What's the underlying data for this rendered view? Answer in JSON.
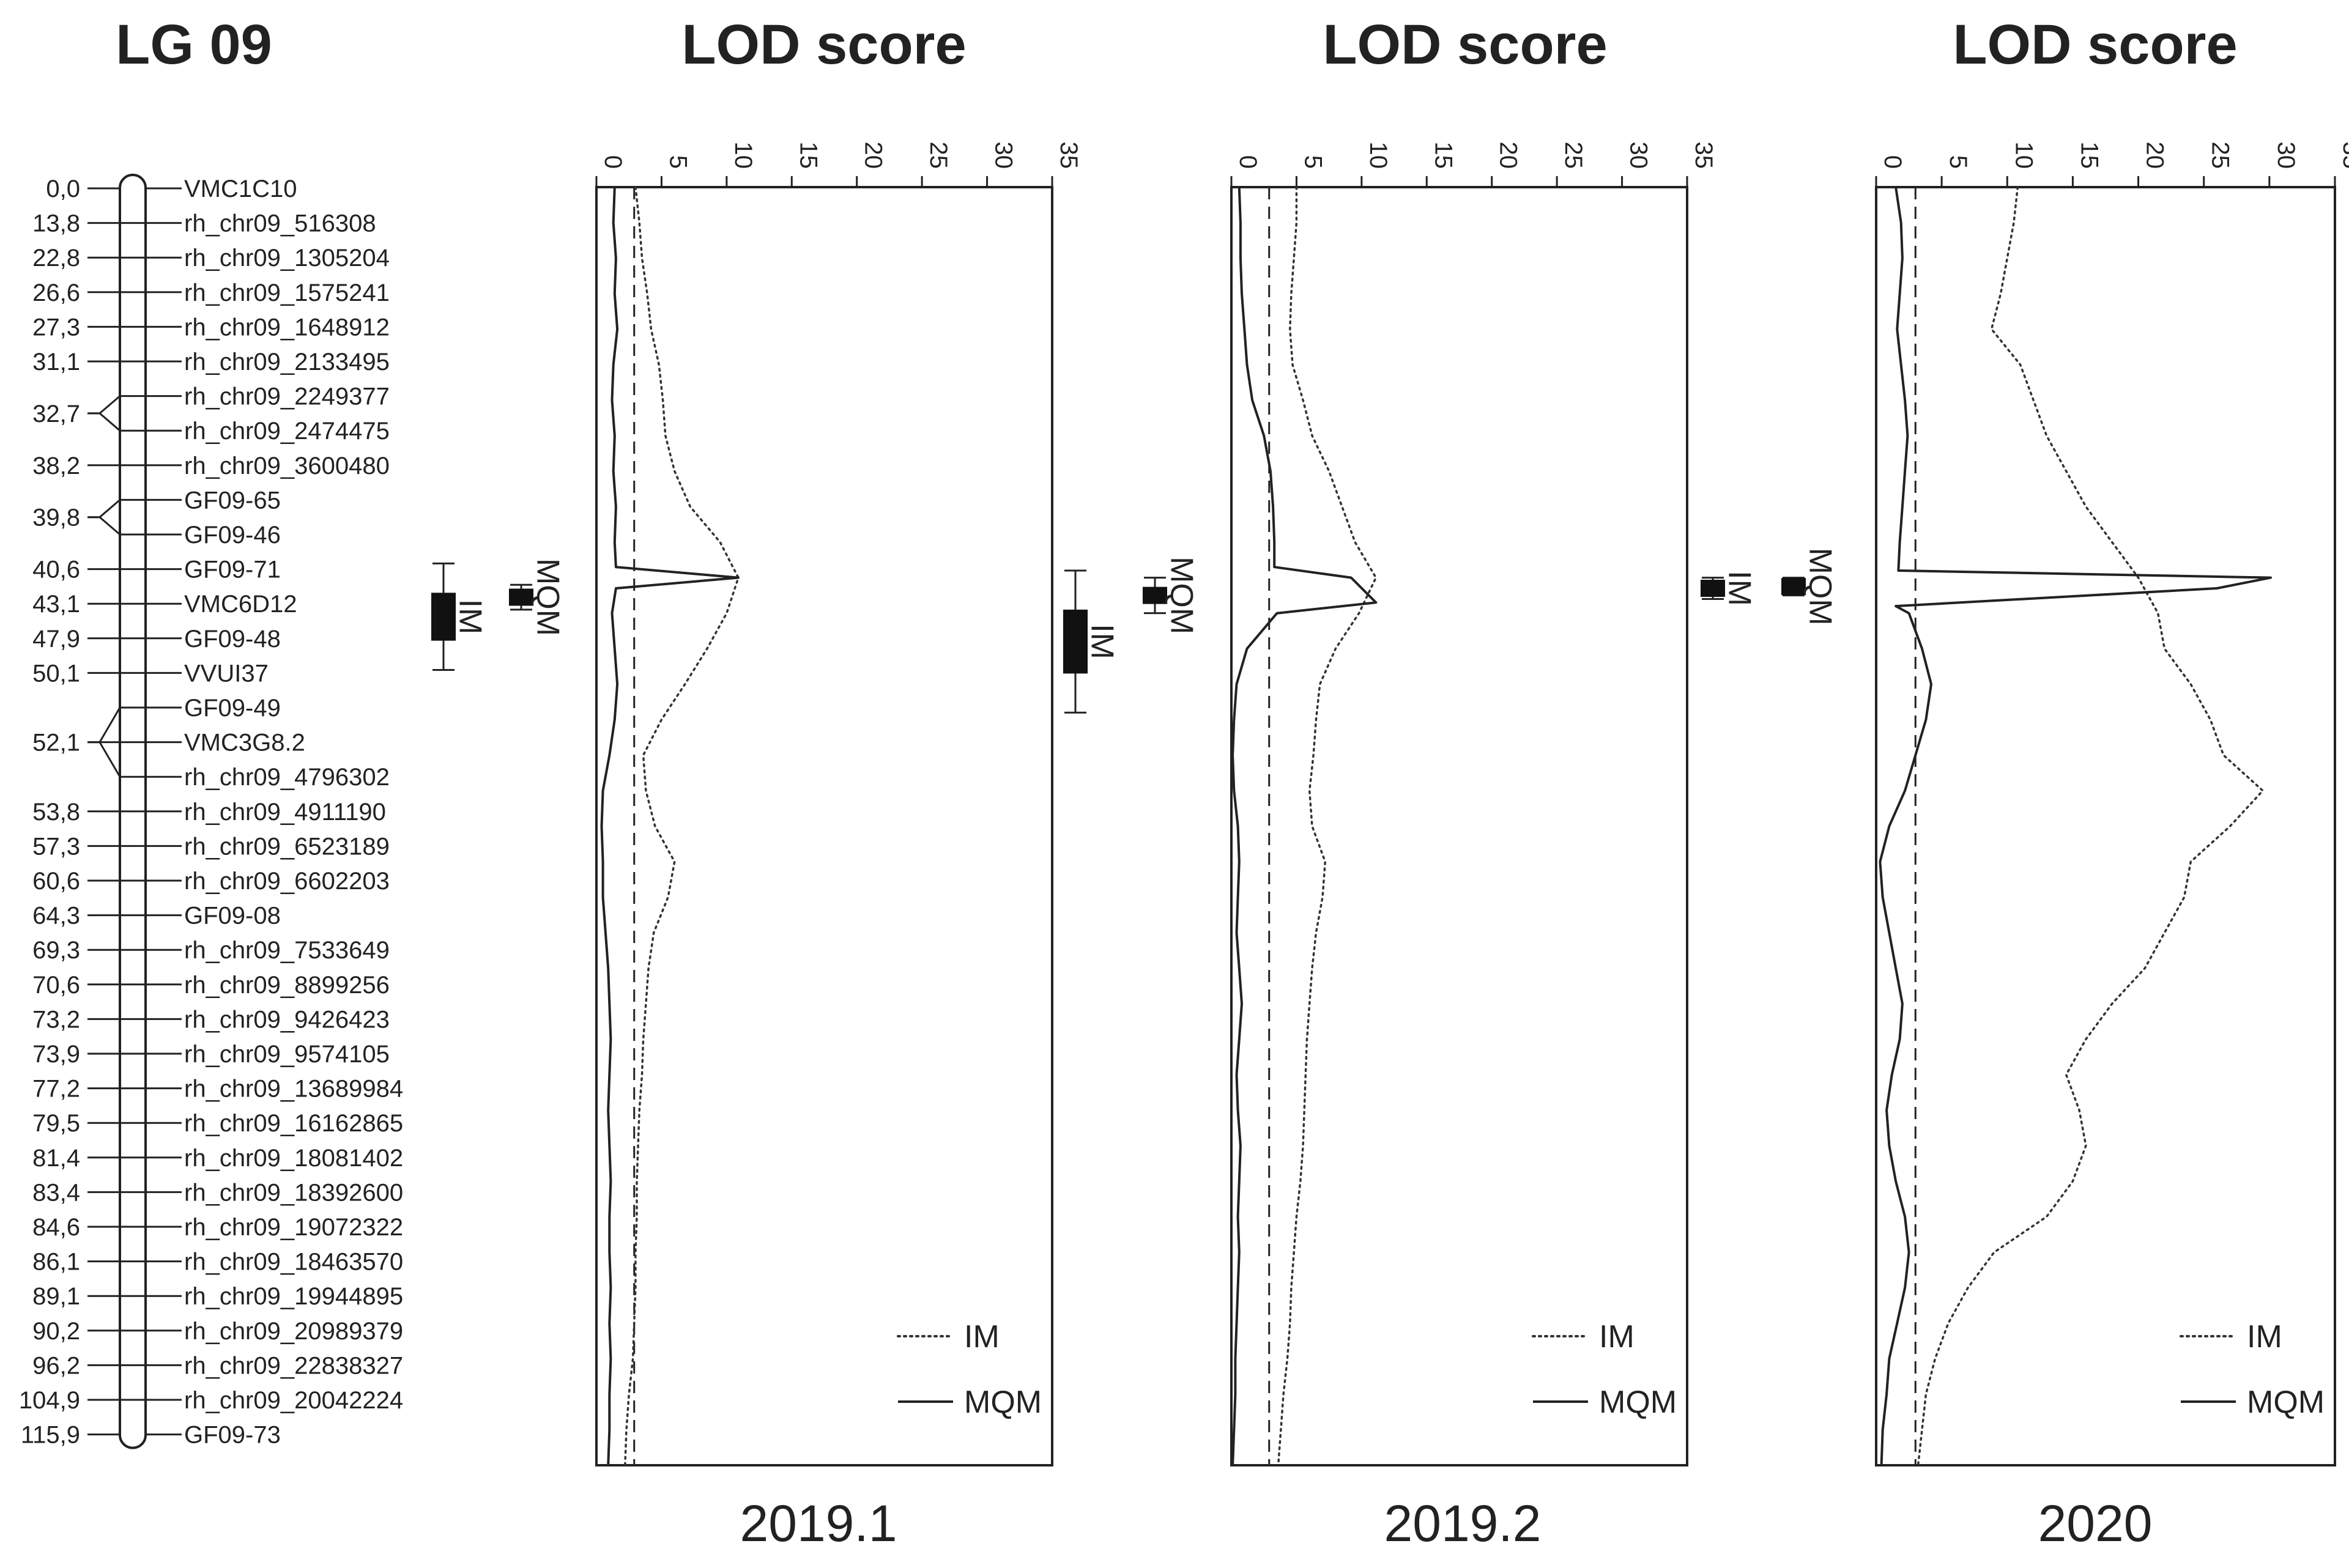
{
  "chart_data": {
    "type": "line",
    "linkage_group": {
      "title": "LG 09",
      "markers": [
        {
          "pos": "0,0",
          "name": "VMC1C10"
        },
        {
          "pos": "13,8",
          "name": "rh_chr09_516308"
        },
        {
          "pos": "22,8",
          "name": "rh_chr09_1305204"
        },
        {
          "pos": "26,6",
          "name": "rh_chr09_1575241"
        },
        {
          "pos": "27,3",
          "name": "rh_chr09_1648912"
        },
        {
          "pos": "31,1",
          "name": "rh_chr09_2133495"
        },
        {
          "pos": "32,7",
          "name": "rh_chr09_2249377"
        },
        {
          "pos": "",
          "name": "rh_chr09_2474475"
        },
        {
          "pos": "38,2",
          "name": "rh_chr09_3600480"
        },
        {
          "pos": "39,8",
          "name": "GF09-65"
        },
        {
          "pos": "",
          "name": "GF09-46"
        },
        {
          "pos": "40,6",
          "name": "GF09-71"
        },
        {
          "pos": "43,1",
          "name": "VMC6D12"
        },
        {
          "pos": "47,9",
          "name": "GF09-48"
        },
        {
          "pos": "50,1",
          "name": "VVUI37"
        },
        {
          "pos": "52,1",
          "name": "GF09-49"
        },
        {
          "pos": "",
          "name": "VMC3G8.2"
        },
        {
          "pos": "",
          "name": "rh_chr09_4796302"
        },
        {
          "pos": "53,8",
          "name": "rh_chr09_4911190"
        },
        {
          "pos": "57,3",
          "name": "rh_chr09_6523189"
        },
        {
          "pos": "60,6",
          "name": "rh_chr09_6602203"
        },
        {
          "pos": "64,3",
          "name": "GF09-08"
        },
        {
          "pos": "69,3",
          "name": "rh_chr09_7533649"
        },
        {
          "pos": "70,6",
          "name": "rh_chr09_8899256"
        },
        {
          "pos": "73,2",
          "name": "rh_chr09_9426423"
        },
        {
          "pos": "73,9",
          "name": "rh_chr09_9574105"
        },
        {
          "pos": "77,2",
          "name": "rh_chr09_13689984"
        },
        {
          "pos": "79,5",
          "name": "rh_chr09_16162865"
        },
        {
          "pos": "81,4",
          "name": "rh_chr09_18081402"
        },
        {
          "pos": "83,4",
          "name": "rh_chr09_18392600"
        },
        {
          "pos": "84,6",
          "name": "rh_chr09_19072322"
        },
        {
          "pos": "86,1",
          "name": "rh_chr09_18463570"
        },
        {
          "pos": "89,1",
          "name": "rh_chr09_19944895"
        },
        {
          "pos": "90,2",
          "name": "rh_chr09_20989379"
        },
        {
          "pos": "96,2",
          "name": "rh_chr09_22838327"
        },
        {
          "pos": "104,9",
          "name": "rh_chr09_20042224"
        },
        {
          "pos": "115,9",
          "name": "GF09-73"
        }
      ]
    },
    "axis_label": "LOD score",
    "xlim": [
      0,
      35
    ],
    "ticks": [
      "0",
      "5",
      "10",
      "15",
      "20",
      "25",
      "30",
      "35"
    ],
    "marker_index_range": [
      0,
      36
    ],
    "series_names": [
      "IM",
      "MQM"
    ],
    "panels": [
      {
        "label": "2019.1",
        "threshold": 2.9,
        "IM": [
          [
            0,
            3.0
          ],
          [
            1,
            3.3
          ],
          [
            2,
            3.5
          ],
          [
            3,
            3.9
          ],
          [
            4,
            4.2
          ],
          [
            5,
            4.8
          ],
          [
            6,
            5.1
          ],
          [
            7,
            5.3
          ],
          [
            8,
            6.0
          ],
          [
            9,
            7.2
          ],
          [
            10,
            9.5
          ],
          [
            11,
            10.9
          ],
          [
            12,
            10.0
          ],
          [
            13,
            8.5
          ],
          [
            14,
            6.8
          ],
          [
            15,
            5.0
          ],
          [
            16,
            3.6
          ],
          [
            17,
            3.8
          ],
          [
            18,
            4.5
          ],
          [
            19,
            6.0
          ],
          [
            20,
            5.5
          ],
          [
            21,
            4.4
          ],
          [
            22,
            4.0
          ],
          [
            23,
            3.8
          ],
          [
            24,
            3.6
          ],
          [
            25,
            3.5
          ],
          [
            26,
            3.3
          ],
          [
            27,
            3.2
          ],
          [
            28,
            3.1
          ],
          [
            29,
            3.1
          ],
          [
            30,
            3.0
          ],
          [
            31,
            3.0
          ],
          [
            32,
            2.9
          ],
          [
            33,
            2.8
          ],
          [
            34,
            2.5
          ],
          [
            35,
            2.3
          ],
          [
            36,
            2.2
          ]
        ],
        "MQM": [
          [
            0,
            1.4
          ],
          [
            1,
            1.3
          ],
          [
            2,
            1.5
          ],
          [
            3,
            1.4
          ],
          [
            4,
            1.6
          ],
          [
            5,
            1.3
          ],
          [
            6,
            1.2
          ],
          [
            7,
            1.4
          ],
          [
            8,
            1.3
          ],
          [
            9,
            1.5
          ],
          [
            10,
            1.4
          ],
          [
            10.7,
            1.5
          ],
          [
            11,
            10.9
          ],
          [
            11.3,
            1.5
          ],
          [
            12,
            1.2
          ],
          [
            13,
            1.4
          ],
          [
            14,
            1.6
          ],
          [
            15,
            1.4
          ],
          [
            16,
            1.0
          ],
          [
            17,
            0.5
          ],
          [
            18,
            0.4
          ],
          [
            19,
            0.5
          ],
          [
            20,
            0.5
          ],
          [
            21,
            0.7
          ],
          [
            22,
            0.9
          ],
          [
            23,
            1.0
          ],
          [
            24,
            1.1
          ],
          [
            25,
            1.0
          ],
          [
            26,
            0.9
          ],
          [
            27,
            1.0
          ],
          [
            28,
            1.1
          ],
          [
            29,
            1.0
          ],
          [
            30,
            1.0
          ],
          [
            31,
            1.1
          ],
          [
            32,
            1.0
          ],
          [
            33,
            1.1
          ],
          [
            34,
            1.0
          ],
          [
            35,
            1.0
          ],
          [
            36,
            0.9
          ]
        ],
        "IM_ci": [
          10.6,
          13.6
        ],
        "MQM_ci": [
          11.2,
          11.9
        ]
      },
      {
        "label": "2019.2",
        "threshold": 2.9,
        "IM": [
          [
            0,
            5.0
          ],
          [
            1,
            5.0
          ],
          [
            2,
            4.8
          ],
          [
            3,
            4.6
          ],
          [
            4,
            4.5
          ],
          [
            5,
            4.7
          ],
          [
            6,
            5.5
          ],
          [
            7,
            6.2
          ],
          [
            8,
            7.5
          ],
          [
            9,
            8.5
          ],
          [
            10,
            9.5
          ],
          [
            11,
            11.1
          ],
          [
            12,
            9.8
          ],
          [
            13,
            8.0
          ],
          [
            14,
            6.8
          ],
          [
            15,
            6.5
          ],
          [
            16,
            6.3
          ],
          [
            17,
            6.0
          ],
          [
            18,
            6.2
          ],
          [
            19,
            7.2
          ],
          [
            20,
            7.0
          ],
          [
            21,
            6.5
          ],
          [
            22,
            6.2
          ],
          [
            23,
            6.0
          ],
          [
            24,
            5.8
          ],
          [
            25,
            5.7
          ],
          [
            26,
            5.6
          ],
          [
            27,
            5.5
          ],
          [
            28,
            5.3
          ],
          [
            29,
            5.0
          ],
          [
            30,
            4.8
          ],
          [
            31,
            4.6
          ],
          [
            32,
            4.5
          ],
          [
            33,
            4.3
          ],
          [
            34,
            4.0
          ],
          [
            35,
            3.8
          ],
          [
            36,
            3.6
          ]
        ],
        "MQM": [
          [
            0,
            0.6
          ],
          [
            1,
            0.7
          ],
          [
            2,
            0.7
          ],
          [
            3,
            0.8
          ],
          [
            4,
            1.0
          ],
          [
            5,
            1.2
          ],
          [
            6,
            1.6
          ],
          [
            7,
            2.5
          ],
          [
            8,
            3.0
          ],
          [
            9,
            3.2
          ],
          [
            10,
            3.3
          ],
          [
            10.7,
            3.3
          ],
          [
            11,
            9.2
          ],
          [
            11.7,
            11.1
          ],
          [
            12,
            3.5
          ],
          [
            13,
            1.2
          ],
          [
            14,
            0.4
          ],
          [
            15,
            0.2
          ],
          [
            16,
            0.1
          ],
          [
            17,
            0.2
          ],
          [
            18,
            0.5
          ],
          [
            19,
            0.6
          ],
          [
            20,
            0.5
          ],
          [
            21,
            0.4
          ],
          [
            22,
            0.6
          ],
          [
            23,
            0.8
          ],
          [
            24,
            0.6
          ],
          [
            25,
            0.4
          ],
          [
            26,
            0.5
          ],
          [
            27,
            0.7
          ],
          [
            28,
            0.6
          ],
          [
            29,
            0.5
          ],
          [
            30,
            0.6
          ],
          [
            31,
            0.5
          ],
          [
            32,
            0.4
          ],
          [
            33,
            0.3
          ],
          [
            34,
            0.3
          ],
          [
            35,
            0.2
          ],
          [
            36,
            0.1
          ]
        ],
        "IM_ci": [
          10.8,
          14.8
        ],
        "MQM_ci": [
          11.0,
          12.0
        ]
      },
      {
        "label": "2020",
        "threshold": 3.0,
        "IM": [
          [
            0,
            10.8
          ],
          [
            1,
            10.5
          ],
          [
            2,
            10.0
          ],
          [
            3,
            9.5
          ],
          [
            4,
            8.8
          ],
          [
            5,
            11.0
          ],
          [
            6,
            12.0
          ],
          [
            7,
            13.0
          ],
          [
            8,
            14.5
          ],
          [
            9,
            16.0
          ],
          [
            10,
            18.0
          ],
          [
            11,
            20.0
          ],
          [
            12,
            21.5
          ],
          [
            13,
            22.0
          ],
          [
            14,
            24.0
          ],
          [
            15,
            25.5
          ],
          [
            16,
            26.5
          ],
          [
            17,
            29.5
          ],
          [
            18,
            27.0
          ],
          [
            19,
            24.0
          ],
          [
            20,
            23.5
          ],
          [
            21,
            22.0
          ],
          [
            22,
            20.5
          ],
          [
            23,
            18.0
          ],
          [
            24,
            16.0
          ],
          [
            25,
            14.5
          ],
          [
            26,
            15.5
          ],
          [
            27,
            16.0
          ],
          [
            28,
            15.0
          ],
          [
            29,
            13.0
          ],
          [
            30,
            9.0
          ],
          [
            31,
            7.0
          ],
          [
            32,
            5.5
          ],
          [
            33,
            4.5
          ],
          [
            34,
            3.8
          ],
          [
            35,
            3.5
          ],
          [
            36,
            3.2
          ]
        ],
        "MQM": [
          [
            0,
            1.5
          ],
          [
            1,
            1.9
          ],
          [
            2,
            2.0
          ],
          [
            3,
            1.8
          ],
          [
            4,
            1.6
          ],
          [
            5,
            1.9
          ],
          [
            6,
            2.2
          ],
          [
            7,
            2.4
          ],
          [
            8,
            2.2
          ],
          [
            9,
            2.0
          ],
          [
            10,
            1.8
          ],
          [
            10.8,
            1.7
          ],
          [
            11,
            30.1
          ],
          [
            11.3,
            26.0
          ],
          [
            11.8,
            1.5
          ],
          [
            12,
            2.5
          ],
          [
            13,
            3.5
          ],
          [
            14,
            4.2
          ],
          [
            15,
            3.8
          ],
          [
            16,
            3.0
          ],
          [
            17,
            2.2
          ],
          [
            18,
            1.0
          ],
          [
            19,
            0.3
          ],
          [
            20,
            0.5
          ],
          [
            21,
            1.0
          ],
          [
            22,
            1.5
          ],
          [
            23,
            2.0
          ],
          [
            24,
            1.8
          ],
          [
            25,
            1.2
          ],
          [
            26,
            0.8
          ],
          [
            27,
            1.0
          ],
          [
            28,
            1.5
          ],
          [
            29,
            2.2
          ],
          [
            30,
            2.5
          ],
          [
            31,
            2.2
          ],
          [
            32,
            1.6
          ],
          [
            33,
            1.0
          ],
          [
            34,
            0.8
          ],
          [
            35,
            0.5
          ],
          [
            36,
            0.4
          ]
        ],
        "IM_ci": [
          11.0,
          11.6
        ],
        "MQM_ci": [
          11.0,
          11.5
        ]
      }
    ]
  }
}
